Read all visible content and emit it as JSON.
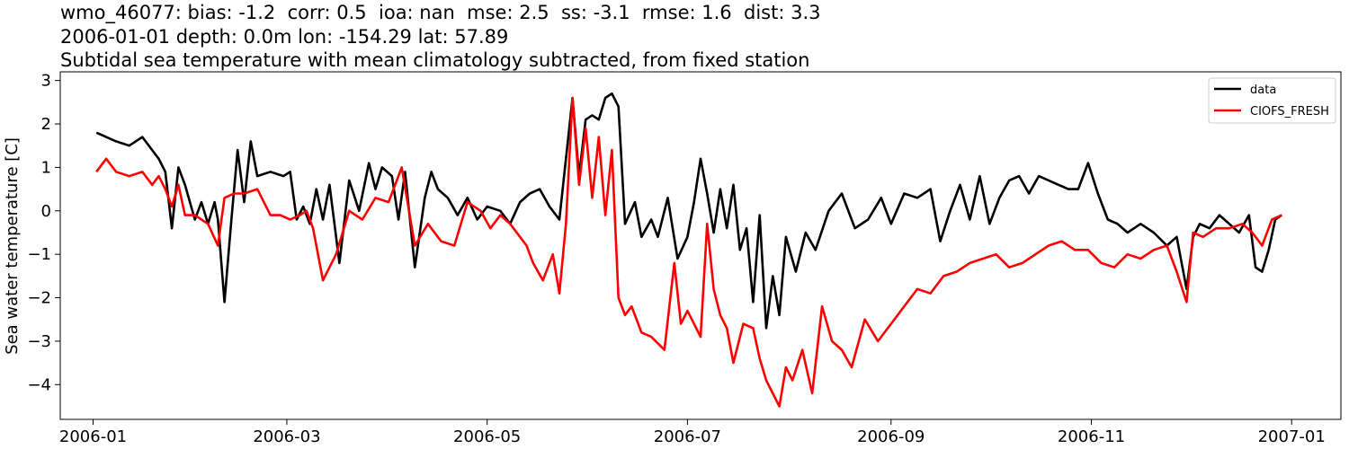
{
  "chart_data": {
    "type": "line",
    "title_lines": [
      "wmo_46077: bias: -1.2  corr: 0.5  ioa: nan  mse: 2.5  ss: -3.1  rmse: 1.6  dist: 3.3",
      "2006-01-01 depth: 0.0m lon: -154.29 lat: 57.89",
      "Subtidal sea temperature with mean climatology subtracted, from fixed station"
    ],
    "xlabel": "",
    "ylabel": "Sea water temperature [C]",
    "xlim": [
      "2005-12-22",
      "2007-01-16"
    ],
    "ylim": [
      -4.8,
      3.2
    ],
    "x_ticks": [
      "2006-01",
      "2006-03",
      "2006-05",
      "2006-07",
      "2006-09",
      "2006-11",
      "2007-01"
    ],
    "x_tick_dates": [
      "2006-01-01",
      "2006-03-01",
      "2006-05-01",
      "2006-07-01",
      "2006-09-01",
      "2006-11-01",
      "2007-01-01"
    ],
    "y_ticks": [
      3,
      2,
      1,
      0,
      -1,
      -2,
      -3,
      -4
    ],
    "y_tick_labels": [
      "3",
      "2",
      "1",
      "0",
      "−1",
      "−2",
      "−3",
      "−4"
    ],
    "grid": false,
    "legend_position": "top-right",
    "series": [
      {
        "name": "data",
        "color": "#000000",
        "x": [
          "2006-01-02",
          "2006-01-05",
          "2006-01-08",
          "2006-01-12",
          "2006-01-16",
          "2006-01-19",
          "2006-01-21",
          "2006-01-23",
          "2006-01-25",
          "2006-01-27",
          "2006-01-29",
          "2006-02-01",
          "2006-02-03",
          "2006-02-05",
          "2006-02-07",
          "2006-02-08",
          "2006-02-10",
          "2006-02-12",
          "2006-02-14",
          "2006-02-16",
          "2006-02-18",
          "2006-02-20",
          "2006-02-24",
          "2006-02-28",
          "2006-03-02",
          "2006-03-04",
          "2006-03-06",
          "2006-03-08",
          "2006-03-10",
          "2006-03-12",
          "2006-03-14",
          "2006-03-17",
          "2006-03-20",
          "2006-03-23",
          "2006-03-26",
          "2006-03-28",
          "2006-03-30",
          "2006-04-02",
          "2006-04-04",
          "2006-04-06",
          "2006-04-09",
          "2006-04-12",
          "2006-04-14",
          "2006-04-16",
          "2006-04-19",
          "2006-04-22",
          "2006-04-25",
          "2006-04-28",
          "2006-05-01",
          "2006-05-05",
          "2006-05-08",
          "2006-05-11",
          "2006-05-14",
          "2006-05-17",
          "2006-05-20",
          "2006-05-23",
          "2006-05-25",
          "2006-05-27",
          "2006-05-29",
          "2006-05-31",
          "2006-06-02",
          "2006-06-04",
          "2006-06-06",
          "2006-06-08",
          "2006-06-10",
          "2006-06-12",
          "2006-06-15",
          "2006-06-17",
          "2006-06-20",
          "2006-06-22",
          "2006-06-25",
          "2006-06-28",
          "2006-07-01",
          "2006-07-03",
          "2006-07-05",
          "2006-07-07",
          "2006-07-09",
          "2006-07-11",
          "2006-07-13",
          "2006-07-15",
          "2006-07-17",
          "2006-07-19",
          "2006-07-21",
          "2006-07-23",
          "2006-07-25",
          "2006-07-27",
          "2006-07-29",
          "2006-07-31",
          "2006-08-03",
          "2006-08-06",
          "2006-08-09",
          "2006-08-13",
          "2006-08-17",
          "2006-08-21",
          "2006-08-25",
          "2006-08-29",
          "2006-09-01",
          "2006-09-05",
          "2006-09-09",
          "2006-09-13",
          "2006-09-16",
          "2006-09-19",
          "2006-09-22",
          "2006-09-25",
          "2006-09-28",
          "2006-10-01",
          "2006-10-04",
          "2006-10-07",
          "2006-10-10",
          "2006-10-13",
          "2006-10-16",
          "2006-10-19",
          "2006-10-22",
          "2006-10-25",
          "2006-10-28",
          "2006-10-31",
          "2006-11-03",
          "2006-11-06",
          "2006-11-09",
          "2006-11-12",
          "2006-11-16",
          "2006-11-20",
          "2006-11-24",
          "2006-11-27",
          "2006-11-30",
          "2006-12-02",
          "2006-12-04",
          "2006-12-07",
          "2006-12-10",
          "2006-12-13",
          "2006-12-16",
          "2006-12-19",
          "2006-12-21",
          "2006-12-23",
          "2006-12-25",
          "2006-12-27",
          "2006-12-29"
        ],
        "values": [
          1.8,
          1.7,
          1.6,
          1.5,
          1.7,
          1.4,
          1.2,
          0.9,
          -0.4,
          1.0,
          0.6,
          -0.2,
          0.2,
          -0.3,
          0.2,
          -0.2,
          -2.1,
          -0.3,
          1.4,
          0.2,
          1.6,
          0.8,
          0.9,
          0.8,
          0.9,
          -0.2,
          0.1,
          -0.3,
          0.5,
          -0.2,
          0.6,
          -1.2,
          0.7,
          0.0,
          1.1,
          0.5,
          1.0,
          0.8,
          -0.2,
          0.9,
          -1.3,
          0.3,
          0.9,
          0.5,
          0.3,
          -0.1,
          0.3,
          -0.2,
          0.1,
          0.0,
          -0.3,
          0.2,
          0.4,
          0.5,
          0.1,
          -0.2,
          1.2,
          2.6,
          0.8,
          2.1,
          2.2,
          2.1,
          2.6,
          2.7,
          2.4,
          -0.3,
          0.2,
          -0.6,
          -0.2,
          -0.6,
          0.3,
          -1.1,
          -0.6,
          0.2,
          1.2,
          0.4,
          -0.5,
          0.5,
          -0.4,
          0.6,
          -0.9,
          -0.4,
          -2.1,
          -0.1,
          -2.7,
          -1.5,
          -2.4,
          -0.6,
          -1.4,
          -0.5,
          -0.9,
          0.0,
          0.4,
          -0.4,
          -0.2,
          0.3,
          -0.3,
          0.4,
          0.3,
          0.5,
          -0.7,
          0.0,
          0.6,
          -0.2,
          0.8,
          -0.3,
          0.3,
          0.7,
          0.8,
          0.4,
          0.8,
          0.7,
          0.6,
          0.5,
          0.5,
          1.1,
          0.4,
          -0.2,
          -0.3,
          -0.5,
          -0.3,
          -0.5,
          -0.8,
          -0.6,
          -1.8,
          -0.6,
          -0.3,
          -0.4,
          -0.1,
          -0.3,
          -0.5,
          -0.1,
          -1.3,
          -1.4,
          -0.9,
          -0.2,
          -0.1
        ]
      },
      {
        "name": "CIOFS_FRESH",
        "color": "#ff0000",
        "x": [
          "2006-01-02",
          "2006-01-05",
          "2006-01-08",
          "2006-01-12",
          "2006-01-16",
          "2006-01-19",
          "2006-01-21",
          "2006-01-23",
          "2006-01-25",
          "2006-01-27",
          "2006-01-29",
          "2006-02-01",
          "2006-02-03",
          "2006-02-05",
          "2006-02-08",
          "2006-02-10",
          "2006-02-13",
          "2006-02-16",
          "2006-02-20",
          "2006-02-24",
          "2006-02-27",
          "2006-03-02",
          "2006-03-05",
          "2006-03-07",
          "2006-03-09",
          "2006-03-12",
          "2006-03-16",
          "2006-03-20",
          "2006-03-24",
          "2006-03-28",
          "2006-04-01",
          "2006-04-05",
          "2006-04-09",
          "2006-04-13",
          "2006-04-17",
          "2006-04-21",
          "2006-04-25",
          "2006-04-29",
          "2006-05-02",
          "2006-05-05",
          "2006-05-08",
          "2006-05-11",
          "2006-05-13",
          "2006-05-15",
          "2006-05-18",
          "2006-05-21",
          "2006-05-23",
          "2006-05-25",
          "2006-05-27",
          "2006-05-29",
          "2006-05-31",
          "2006-06-02",
          "2006-06-04",
          "2006-06-06",
          "2006-06-08",
          "2006-06-10",
          "2006-06-12",
          "2006-06-14",
          "2006-06-17",
          "2006-06-20",
          "2006-06-24",
          "2006-06-27",
          "2006-06-29",
          "2006-07-01",
          "2006-07-03",
          "2006-07-05",
          "2006-07-07",
          "2006-07-09",
          "2006-07-11",
          "2006-07-13",
          "2006-07-15",
          "2006-07-18",
          "2006-07-21",
          "2006-07-23",
          "2006-07-25",
          "2006-07-27",
          "2006-07-29",
          "2006-07-31",
          "2006-08-02",
          "2006-08-05",
          "2006-08-08",
          "2006-08-11",
          "2006-08-14",
          "2006-08-17",
          "2006-08-20",
          "2006-08-24",
          "2006-08-28",
          "2006-09-01",
          "2006-09-05",
          "2006-09-09",
          "2006-09-13",
          "2006-09-17",
          "2006-09-21",
          "2006-09-25",
          "2006-09-29",
          "2006-10-03",
          "2006-10-07",
          "2006-10-11",
          "2006-10-15",
          "2006-10-19",
          "2006-10-23",
          "2006-10-27",
          "2006-10-31",
          "2006-11-04",
          "2006-11-08",
          "2006-11-12",
          "2006-11-16",
          "2006-11-20",
          "2006-11-24",
          "2006-11-27",
          "2006-11-30",
          "2006-12-02",
          "2006-12-05",
          "2006-12-09",
          "2006-12-13",
          "2006-12-17",
          "2006-12-20",
          "2006-12-23",
          "2006-12-26",
          "2006-12-29"
        ],
        "values": [
          0.9,
          1.2,
          0.9,
          0.8,
          0.9,
          0.6,
          0.8,
          0.5,
          0.1,
          0.6,
          -0.1,
          -0.1,
          -0.2,
          -0.3,
          -0.8,
          0.3,
          0.4,
          0.4,
          0.5,
          -0.1,
          -0.1,
          -0.2,
          -0.1,
          0.0,
          -0.4,
          -1.6,
          -1.0,
          0.0,
          -0.2,
          0.3,
          0.2,
          1.0,
          -0.8,
          -0.3,
          -0.7,
          -0.8,
          0.2,
          0.0,
          -0.4,
          -0.1,
          -0.3,
          -0.6,
          -0.8,
          -1.2,
          -1.6,
          -1.0,
          -1.9,
          -0.3,
          2.6,
          0.6,
          1.9,
          0.3,
          1.7,
          -0.1,
          1.4,
          -2.0,
          -2.4,
          -2.2,
          -2.8,
          -2.9,
          -3.2,
          -1.2,
          -2.6,
          -2.3,
          -2.6,
          -2.9,
          -0.3,
          -1.8,
          -2.4,
          -2.7,
          -3.5,
          -2.6,
          -2.7,
          -3.4,
          -3.9,
          -4.2,
          -4.5,
          -3.6,
          -3.9,
          -3.2,
          -4.2,
          -2.2,
          -3.0,
          -3.2,
          -3.6,
          -2.5,
          -3.0,
          -2.6,
          -2.2,
          -1.8,
          -1.9,
          -1.5,
          -1.4,
          -1.2,
          -1.1,
          -1.0,
          -1.3,
          -1.2,
          -1.0,
          -0.8,
          -0.7,
          -0.9,
          -0.9,
          -1.2,
          -1.3,
          -1.0,
          -1.1,
          -0.9,
          -0.8,
          -1.4,
          -2.1,
          -0.5,
          -0.6,
          -0.4,
          -0.4,
          -0.3,
          -0.5,
          -0.8,
          -0.2,
          -0.1
        ]
      }
    ]
  }
}
